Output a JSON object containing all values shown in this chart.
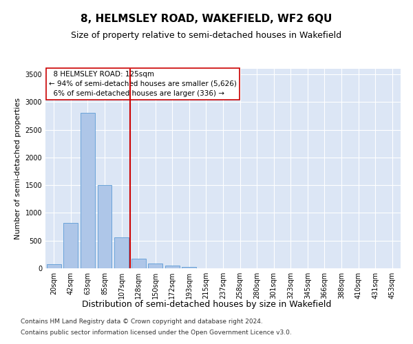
{
  "title1": "8, HELMSLEY ROAD, WAKEFIELD, WF2 6QU",
  "title2": "Size of property relative to semi-detached houses in Wakefield",
  "xlabel": "Distribution of semi-detached houses by size in Wakefield",
  "ylabel": "Number of semi-detached properties",
  "footnote1": "Contains HM Land Registry data © Crown copyright and database right 2024.",
  "footnote2": "Contains public sector information licensed under the Open Government Licence v3.0.",
  "bin_labels": [
    "20sqm",
    "42sqm",
    "63sqm",
    "85sqm",
    "107sqm",
    "128sqm",
    "150sqm",
    "172sqm",
    "193sqm",
    "215sqm",
    "237sqm",
    "258sqm",
    "280sqm",
    "301sqm",
    "323sqm",
    "345sqm",
    "366sqm",
    "388sqm",
    "410sqm",
    "431sqm",
    "453sqm"
  ],
  "bar_heights": [
    80,
    820,
    2800,
    1500,
    560,
    175,
    90,
    55,
    30,
    5,
    3,
    2,
    1,
    0,
    0,
    0,
    0,
    0,
    0,
    0,
    0
  ],
  "bar_color": "#aec6e8",
  "bar_edge_color": "#5b9bd5",
  "property_line_label": "8 HELMSLEY ROAD: 125sqm",
  "pct_smaller": 94,
  "n_smaller": 5626,
  "pct_larger": 6,
  "n_larger": 336,
  "vline_color": "#cc0000",
  "annotation_box_color": "#ffffff",
  "annotation_box_edge": "#cc0000",
  "ylim": [
    0,
    3600
  ],
  "yticks": [
    0,
    500,
    1000,
    1500,
    2000,
    2500,
    3000,
    3500
  ],
  "bg_color": "#dce6f5",
  "grid_color": "#ffffff",
  "title1_fontsize": 11,
  "title2_fontsize": 9,
  "xlabel_fontsize": 9,
  "ylabel_fontsize": 8,
  "tick_fontsize": 7,
  "annotation_fontsize": 7.5,
  "footnote_fontsize": 6.5
}
